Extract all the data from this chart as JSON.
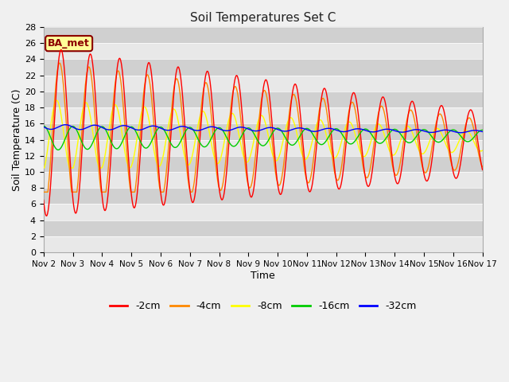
{
  "title": "Soil Temperatures Set C",
  "xlabel": "Time",
  "ylabel": "Soil Temperature (C)",
  "ylim": [
    0,
    28
  ],
  "yticks": [
    0,
    2,
    4,
    6,
    8,
    10,
    12,
    14,
    16,
    18,
    20,
    22,
    24,
    26,
    28
  ],
  "annotation_text": "BA_met",
  "annotation_bg": "#ffff99",
  "annotation_border": "#8b0000",
  "series_colors": {
    "-2cm": "#ff0000",
    "-4cm": "#ff8800",
    "-8cm": "#ffff00",
    "-16cm": "#00cc00",
    "-32cm": "#0000ff"
  },
  "series_labels": [
    "-2cm",
    "-4cm",
    "-8cm",
    "-16cm",
    "-32cm"
  ],
  "legend_colors": [
    "#ff0000",
    "#ff8800",
    "#ffff00",
    "#00cc00",
    "#0000ff"
  ],
  "n_points": 1440,
  "x_start": 2,
  "x_end": 17,
  "xtick_labels": [
    "Nov 2",
    "Nov 3",
    "Nov 4",
    "Nov 5",
    "Nov 6",
    "Nov 7",
    "Nov 8",
    "Nov 9",
    "Nov 10",
    "Nov 11",
    "Nov 12",
    "Nov 13",
    "Nov 14",
    "Nov 15",
    "Nov 16",
    "Nov 17"
  ],
  "xtick_positions": [
    2,
    3,
    4,
    5,
    6,
    7,
    8,
    9,
    10,
    11,
    12,
    13,
    14,
    15,
    16,
    17
  ],
  "grid_colors": [
    "#e8e8e8",
    "#d0d0d0"
  ],
  "plot_bg": "#e0e0e0",
  "fig_bg": "#f0f0f0"
}
